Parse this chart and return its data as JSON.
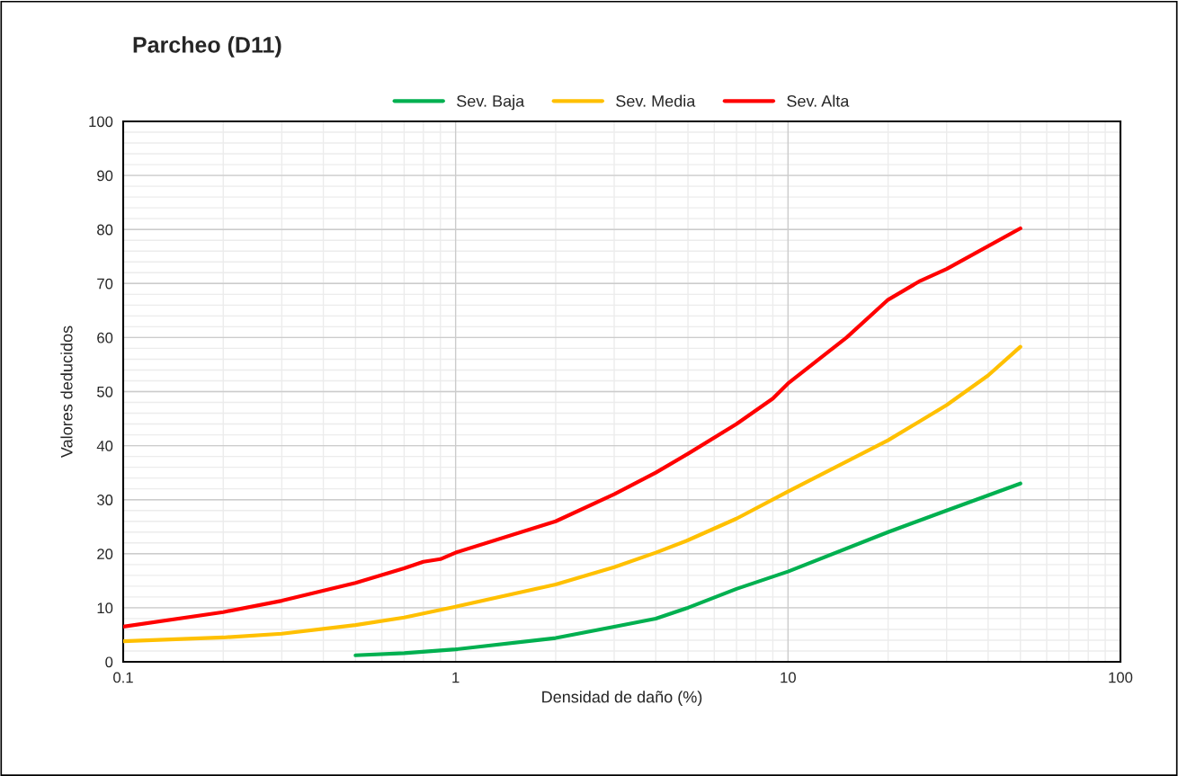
{
  "chart_data": {
    "type": "line",
    "title": "Parcheo (D11)",
    "xlabel": "Densidad de daño (%)",
    "ylabel": "Valores deducidos",
    "log": "x",
    "xlim": [
      0.1,
      100
    ],
    "xticks": [
      0.1,
      1,
      10,
      100
    ],
    "ylim": [
      0,
      100
    ],
    "yticks": [
      0,
      10,
      20,
      30,
      40,
      50,
      60,
      70,
      80,
      90,
      100
    ],
    "grid": true,
    "legend": "top",
    "marker": "none",
    "line_style": "solid",
    "series": [
      {
        "name": "Sev. Baja",
        "color": "#00b050",
        "x": [
          0.5,
          0.7,
          1,
          2,
          3,
          4,
          5,
          7,
          10,
          20,
          30,
          50
        ],
        "values": [
          1.2,
          1.6,
          2.3,
          4.4,
          6.5,
          8,
          10,
          13.5,
          16.7,
          24,
          28,
          33
        ]
      },
      {
        "name": "Sev. Media",
        "color": "#ffc000",
        "x": [
          0.1,
          0.2,
          0.3,
          0.5,
          0.7,
          0.9,
          1,
          2,
          3,
          4,
          5,
          7,
          10,
          20,
          30,
          40,
          50
        ],
        "values": [
          3.8,
          4.5,
          5.2,
          6.8,
          8.2,
          9.6,
          10.2,
          14.3,
          17.5,
          20.2,
          22.5,
          26.5,
          31.5,
          41,
          47.5,
          53,
          58.3
        ]
      },
      {
        "name": "Sev. Alta",
        "color": "#ff0000",
        "x": [
          0.1,
          0.2,
          0.3,
          0.5,
          0.7,
          0.8,
          0.9,
          1,
          2,
          3,
          4,
          5,
          7,
          9,
          10,
          15,
          20,
          25,
          30,
          50
        ],
        "values": [
          6.5,
          9.2,
          11.3,
          14.6,
          17.3,
          18.5,
          19,
          20.2,
          26,
          31,
          35,
          38.5,
          44,
          48.7,
          51.5,
          60,
          67,
          70.5,
          72.7,
          80.2
        ]
      }
    ]
  }
}
